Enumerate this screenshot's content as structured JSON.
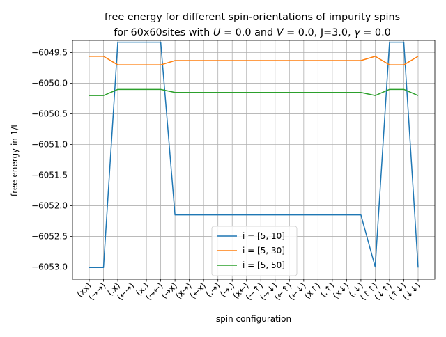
{
  "chart_data": {
    "type": "line",
    "title": {
      "line1": "free energy for different spin-orientations of impurity spins",
      "line2_prefix": "for 60x60sites with ",
      "line2_u": "U",
      "line2_mid1": " = 0.0 and ",
      "line2_v": "V",
      "line2_mid2": " = 0.0, J=3.0, ",
      "line2_gamma": "γ",
      "line2_suffix": " = 0.0"
    },
    "xlabel": "spin configuration",
    "ylabel": "free energy in 1/t",
    "categories": [
      "(xx)",
      "(→→)",
      "(.x)",
      "(←→)",
      "(x.)",
      "(→←)",
      "(→x)",
      "(x→)",
      "(←x)",
      "(.→)",
      "(→.)",
      "(x←)",
      "(→↑)",
      "(→↓)",
      "(←↑)",
      "(←↓)",
      "(x↑)",
      "(.↑)",
      "(x↓)",
      "(.↓)",
      "(↑↑)",
      "(↓↑)",
      "(↑↓)",
      "(↓↓)"
    ],
    "ylim": [
      -6053.2,
      -6049.3
    ],
    "yticks": [
      -6053.0,
      -6052.5,
      -6052.0,
      -6051.5,
      -6051.0,
      -6050.5,
      -6050.0,
      -6049.5
    ],
    "ytick_labels": [
      "−6053.0",
      "−6052.5",
      "−6052.0",
      "−6051.5",
      "−6051.0",
      "−6050.5",
      "−6050.0",
      "−6049.5"
    ],
    "grid": true,
    "legend_position": "lower-center",
    "series": [
      {
        "name": "i = [5, 10]",
        "color": "#1f77b4",
        "values": [
          -6053.01,
          -6053.01,
          -6049.33,
          -6049.33,
          -6049.33,
          -6049.33,
          -6052.15,
          -6052.15,
          -6052.15,
          -6052.15,
          -6052.15,
          -6052.15,
          -6052.15,
          -6052.15,
          -6052.15,
          -6052.15,
          -6052.15,
          -6052.15,
          -6052.15,
          -6052.15,
          -6053.0,
          -6049.33,
          -6049.33,
          -6053.01
        ]
      },
      {
        "name": "i = [5, 30]",
        "color": "#ff7f0e",
        "values": [
          -6049.56,
          -6049.56,
          -6049.7,
          -6049.7,
          -6049.7,
          -6049.7,
          -6049.63,
          -6049.63,
          -6049.63,
          -6049.63,
          -6049.63,
          -6049.63,
          -6049.63,
          -6049.63,
          -6049.63,
          -6049.63,
          -6049.63,
          -6049.63,
          -6049.63,
          -6049.63,
          -6049.56,
          -6049.7,
          -6049.7,
          -6049.56
        ]
      },
      {
        "name": "i = [5, 50]",
        "color": "#2ca02c",
        "values": [
          -6050.2,
          -6050.2,
          -6050.1,
          -6050.1,
          -6050.1,
          -6050.1,
          -6050.15,
          -6050.15,
          -6050.15,
          -6050.15,
          -6050.15,
          -6050.15,
          -6050.15,
          -6050.15,
          -6050.15,
          -6050.15,
          -6050.15,
          -6050.15,
          -6050.15,
          -6050.15,
          -6050.2,
          -6050.1,
          -6050.1,
          -6050.2
        ]
      }
    ]
  }
}
